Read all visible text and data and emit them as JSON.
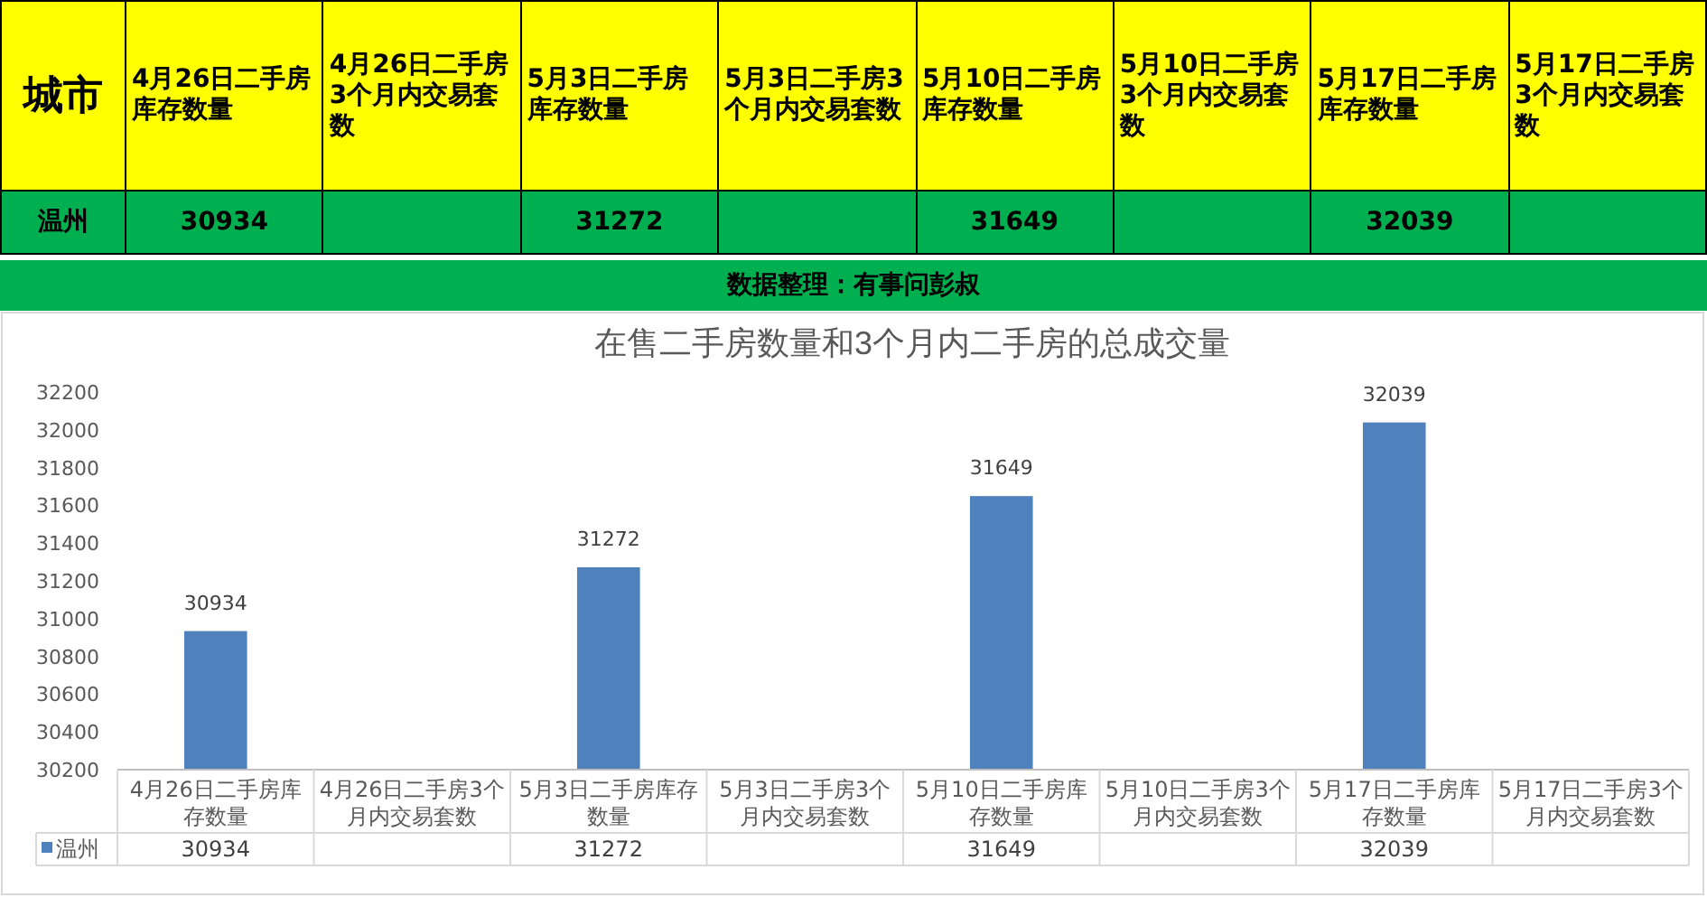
{
  "chart_data": [
    {
      "type": "heatmap",
      "ylabel": "城市",
      "categories": [
        "4月26日二手房库存数量",
        "4月26日二手房3个月内交易套数",
        "5月3日二手房库存数量",
        "5月3日二手房3个月内交易套数",
        "5月10日二手房库存数量",
        "5月10日二手房3个月内交易套数",
        "5月17日二手房库存数量",
        "5月17日二手房3个月内交易套数"
      ],
      "y_categories": [
        "温州"
      ],
      "cells": [
        [
          30934,
          null,
          31272,
          null,
          31649,
          null,
          32039,
          null
        ]
      ],
      "data_labels": true,
      "annotations": [
        "数据整理：有事问彭叔"
      ]
    },
    {
      "type": "bar",
      "title": "在售二手房数量和3个月内二手房的总成交量",
      "categories": [
        "4月26日二手房库存数量",
        "4月26日二手房3个月内交易套数",
        "5月3日二手房库存数量",
        "5月3日二手房3个月内交易套数",
        "5月10日二手房库存数量",
        "5月10日二手房3个月内交易套数",
        "5月17日二手房库存数量",
        "5月17日二手房3个月内交易套数"
      ],
      "series": [
        {
          "name": "温州",
          "color": "#4f81bd",
          "values": [
            30934,
            null,
            31272,
            null,
            31649,
            null,
            32039,
            null
          ]
        }
      ],
      "data_labels": true,
      "ylim": [
        30200,
        32200
      ],
      "yticks": [
        30200,
        30400,
        30600,
        30800,
        31000,
        31200,
        31400,
        31600,
        31800,
        32000,
        32200
      ],
      "annotations": [
        "30934",
        "31272",
        "31649",
        "32039"
      ],
      "legend": "bottom"
    }
  ]
}
